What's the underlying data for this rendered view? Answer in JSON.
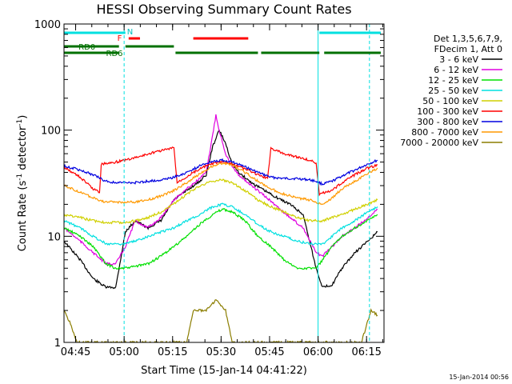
{
  "chart_data": {
    "type": "line",
    "title": "HESSI Observing Summary Count Rates",
    "xlabel": "Start Time (15-Jan-14 04:41:22)",
    "ylabel_main": "Count Rate (s",
    "ylabel_sup1": "-1",
    "ylabel_mid": " detector",
    "ylabel_sup2": "-1",
    "ylabel_end": ")",
    "timestamp": "15-Jan-2014 00:56",
    "x_unit": "minutes after 04:41:22",
    "xlim": [
      0,
      99
    ],
    "ylim": [
      1,
      1000
    ],
    "y_scale": "log",
    "x_ticks": [
      {
        "t": 3.6,
        "label": "04:45"
      },
      {
        "t": 18.6,
        "label": "05:00"
      },
      {
        "t": 33.6,
        "label": "05:15"
      },
      {
        "t": 48.6,
        "label": "05:30"
      },
      {
        "t": 63.6,
        "label": "05:45"
      },
      {
        "t": 78.6,
        "label": "06:00"
      },
      {
        "t": 93.6,
        "label": "06:15"
      }
    ],
    "y_ticks": [
      {
        "v": 1,
        "label": "1"
      },
      {
        "v": 10,
        "label": "10"
      },
      {
        "v": 100,
        "label": "100"
      },
      {
        "v": 1000,
        "label": "1000"
      }
    ],
    "legend_title_1": "Det 1,3,5,6,7,9,",
    "legend_title_2": "FDecim 1, Att 0",
    "series": [
      {
        "name": "3 - 6 keV",
        "color": "#000000",
        "t": [
          0,
          5,
          9,
          13,
          16,
          19,
          22,
          26,
          30,
          34,
          38,
          42,
          44,
          46,
          48,
          50,
          52,
          54,
          58,
          62,
          66,
          70,
          74,
          78,
          80,
          83,
          86,
          90,
          94,
          97
        ],
        "v": [
          9,
          6,
          4,
          3.3,
          3.3,
          11,
          14,
          12,
          14,
          22,
          27,
          33,
          38,
          70,
          100,
          75,
          48,
          40,
          32,
          27,
          23,
          20,
          16,
          5,
          3.3,
          3.5,
          5,
          7,
          9,
          11
        ]
      },
      {
        "name": "6 - 12 keV",
        "color": "#e000e0",
        "t": [
          0,
          5,
          9,
          13,
          16,
          19,
          22,
          26,
          30,
          34,
          38,
          42,
          44,
          46,
          47,
          48,
          50,
          52,
          54,
          58,
          62,
          66,
          70,
          74,
          78,
          80,
          83,
          86,
          90,
          94,
          97
        ],
        "v": [
          12,
          9,
          7,
          5.5,
          5.5,
          8,
          14,
          12,
          15,
          22,
          28,
          35,
          40,
          90,
          140,
          100,
          60,
          45,
          38,
          30,
          24,
          19,
          15,
          12,
          7,
          6.5,
          8,
          10,
          12,
          15,
          18
        ]
      },
      {
        "name": "12 - 25 keV",
        "color": "#00e000",
        "t": [
          0,
          5,
          9,
          13,
          16,
          19,
          22,
          26,
          30,
          34,
          38,
          42,
          46,
          49,
          52,
          56,
          60,
          64,
          68,
          72,
          76,
          78,
          80,
          83,
          86,
          90,
          94,
          97
        ],
        "v": [
          12,
          10,
          8,
          5.5,
          5,
          5,
          5.2,
          5.5,
          6.5,
          8,
          10,
          13,
          16,
          18,
          17,
          14,
          10,
          8,
          6,
          5,
          5,
          5,
          6,
          8,
          10,
          12,
          14,
          16
        ]
      },
      {
        "name": "25 - 50 keV",
        "color": "#00e0e0",
        "t": [
          0,
          5,
          9,
          13,
          16,
          19,
          22,
          26,
          30,
          34,
          38,
          42,
          46,
          49,
          52,
          56,
          60,
          64,
          68,
          72,
          76,
          78,
          80,
          83,
          86,
          90,
          94,
          97
        ],
        "v": [
          14,
          12,
          10,
          8.5,
          8.5,
          8.5,
          9,
          10,
          11,
          12,
          14,
          16,
          19,
          20,
          19,
          16,
          13,
          11,
          10,
          9,
          8.5,
          8.5,
          8.5,
          10,
          12,
          14,
          17,
          19
        ]
      },
      {
        "name": "50 - 100 keV",
        "color": "#d0d000",
        "t": [
          0,
          5,
          9,
          13,
          16,
          19,
          22,
          26,
          30,
          34,
          38,
          42,
          46,
          49,
          52,
          56,
          60,
          64,
          68,
          72,
          76,
          78,
          80,
          83,
          86,
          90,
          94,
          97
        ],
        "v": [
          16,
          15,
          14,
          13.5,
          13.5,
          13.5,
          14,
          15,
          17,
          20,
          25,
          30,
          33,
          34,
          32,
          27,
          22,
          19,
          17,
          15,
          14,
          14,
          14,
          15,
          16,
          18,
          20,
          22
        ]
      },
      {
        "name": "100 - 300 keV",
        "color": "#ff0000",
        "t": [
          0,
          5,
          9,
          11,
          11.5,
          16,
          20,
          24,
          28,
          32,
          34,
          35,
          40,
          44,
          48,
          52,
          56,
          60,
          63,
          64,
          68,
          72,
          76,
          78,
          79,
          83,
          86,
          90,
          94,
          97
        ],
        "v": [
          45,
          36,
          28,
          26,
          48,
          50,
          53,
          57,
          62,
          66,
          68,
          32,
          40,
          46,
          50,
          48,
          43,
          38,
          35,
          68,
          60,
          56,
          52,
          49,
          25,
          27,
          32,
          38,
          44,
          47
        ]
      },
      {
        "name": "300 - 800 keV",
        "color": "#0000e0",
        "t": [
          0,
          5,
          9,
          13,
          16,
          19,
          22,
          26,
          30,
          34,
          38,
          42,
          46,
          49,
          52,
          56,
          60,
          64,
          68,
          72,
          76,
          78,
          80,
          83,
          86,
          90,
          94,
          97
        ],
        "v": [
          46,
          42,
          38,
          33,
          32,
          32,
          32,
          33,
          34,
          36,
          40,
          46,
          51,
          52,
          50,
          45,
          40,
          36,
          35,
          35,
          34,
          33,
          31,
          33,
          37,
          42,
          48,
          52
        ]
      },
      {
        "name": "800 - 7000 keV",
        "color": "#ff9900",
        "t": [
          0,
          5,
          9,
          13,
          16,
          19,
          22,
          26,
          30,
          34,
          38,
          42,
          46,
          49,
          52,
          56,
          60,
          64,
          68,
          72,
          76,
          78,
          80,
          83,
          86,
          90,
          94,
          97
        ],
        "v": [
          30,
          26,
          23,
          21,
          21,
          21,
          21,
          22,
          24,
          27,
          32,
          39,
          46,
          49,
          47,
          40,
          33,
          28,
          25,
          23,
          22,
          21,
          20,
          23,
          28,
          33,
          39,
          44
        ]
      },
      {
        "name": "7000 - 20000 keV",
        "color": "#8b7d00",
        "t": [
          0,
          2,
          4,
          38,
          40,
          44,
          47,
          50,
          52,
          92,
          95,
          97
        ],
        "v": [
          2,
          1.5,
          1,
          1,
          2,
          2,
          2.5,
          2,
          1,
          1,
          2,
          1.8
        ]
      }
    ],
    "annotations": {
      "N_label": "N",
      "F_label": "F",
      "RD0_label": "RD0",
      "RD6_label": "RD6",
      "N_bars": [
        [
          0,
          19
        ],
        [
          79,
          98
        ]
      ],
      "F_bars": [
        [
          20,
          23.5
        ],
        [
          40,
          57
        ]
      ],
      "RD0_bars": [
        [
          0,
          17
        ],
        [
          19,
          34
        ]
      ],
      "RD6_bars": [
        [
          0,
          17
        ],
        [
          34.5,
          60
        ],
        [
          61,
          79
        ],
        [
          80.5,
          98
        ]
      ],
      "saa_lines": [
        18.2,
        78.6
      ],
      "night_lines": [
        0,
        18.6,
        78.6,
        94.5
      ]
    }
  }
}
